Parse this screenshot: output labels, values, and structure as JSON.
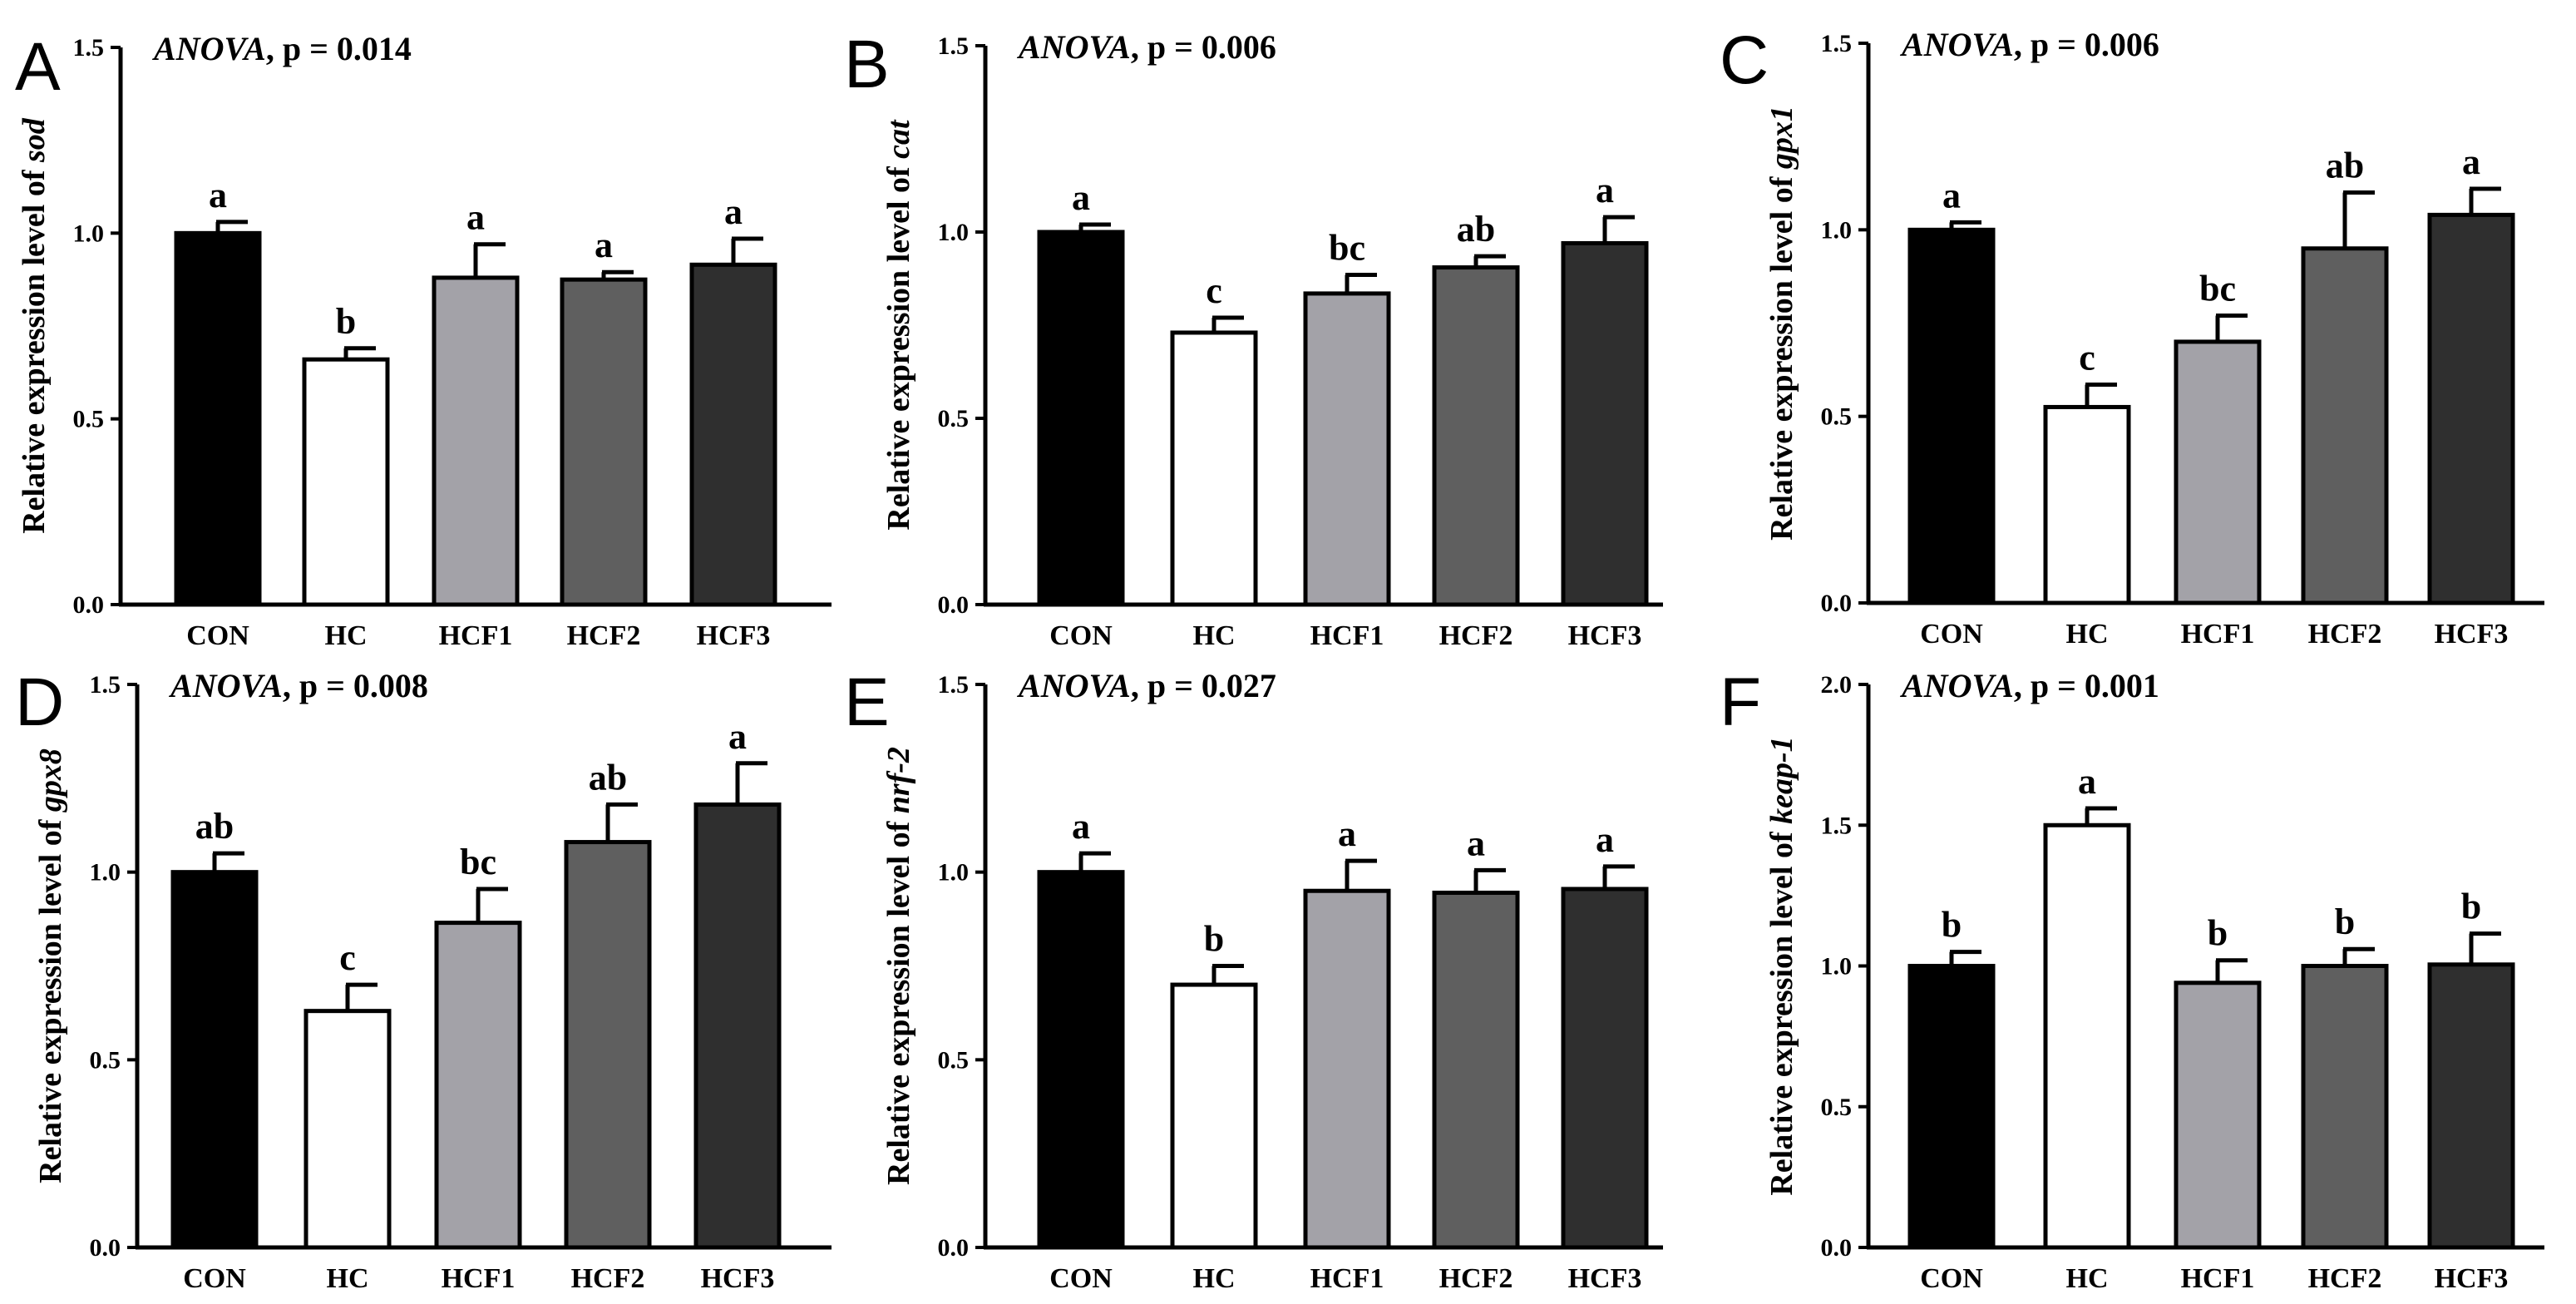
{
  "colors": {
    "CON": "#000000",
    "HC": "#ffffff",
    "HCF1": "#a3a2a8",
    "HCF2": "#5f5f5f",
    "HCF3": "#2f2f2f",
    "stroke": "#000000"
  },
  "chart_data": [
    {
      "panel": "A",
      "type": "bar",
      "categories": [
        "CON",
        "HC",
        "HCF1",
        "HCF2",
        "HCF3"
      ],
      "values": [
        1.0,
        0.66,
        0.88,
        0.875,
        0.915
      ],
      "errors": [
        0.03,
        0.03,
        0.09,
        0.02,
        0.07
      ],
      "significance": [
        "a",
        "b",
        "a",
        "a",
        "a"
      ],
      "annotation_italic": "ANOVA",
      "annotation_rest": ", p = 0.014",
      "ylabel_prefix": "Relative expression level of ",
      "ylabel_gene": "sod",
      "ylim": [
        0,
        1.5
      ],
      "yticks": [
        "0.0",
        "0.5",
        "1.0",
        "1.5"
      ]
    },
    {
      "panel": "B",
      "type": "bar",
      "categories": [
        "CON",
        "HC",
        "HCF1",
        "HCF2",
        "HCF3"
      ],
      "values": [
        1.0,
        0.73,
        0.835,
        0.905,
        0.97
      ],
      "errors": [
        0.02,
        0.04,
        0.05,
        0.03,
        0.07
      ],
      "significance": [
        "a",
        "c",
        "bc",
        "ab",
        "a"
      ],
      "annotation_italic": "ANOVA",
      "annotation_rest": ", p = 0.006",
      "ylabel_prefix": "Relative expression level of ",
      "ylabel_gene": "cat",
      "ylim": [
        0,
        1.5
      ],
      "yticks": [
        "0.0",
        "0.5",
        "1.0",
        "1.5"
      ]
    },
    {
      "panel": "C",
      "type": "bar",
      "categories": [
        "CON",
        "HC",
        "HCF1",
        "HCF2",
        "HCF3"
      ],
      "values": [
        1.0,
        0.525,
        0.7,
        0.95,
        1.04
      ],
      "errors": [
        0.02,
        0.06,
        0.07,
        0.15,
        0.07
      ],
      "significance": [
        "a",
        "c",
        "bc",
        "ab",
        "a"
      ],
      "annotation_italic": "ANOVA",
      "annotation_rest": ", p = 0.006",
      "ylabel_prefix": "Relative expression level of ",
      "ylabel_gene": "gpx1",
      "ylim": [
        0,
        1.5
      ],
      "yticks": [
        "0.0",
        "0.5",
        "1.0",
        "1.5"
      ]
    },
    {
      "panel": "D",
      "type": "bar",
      "categories": [
        "CON",
        "HC",
        "HCF1",
        "HCF2",
        "HCF3"
      ],
      "values": [
        1.0,
        0.63,
        0.865,
        1.08,
        1.18
      ],
      "errors": [
        0.05,
        0.07,
        0.09,
        0.1,
        0.11
      ],
      "significance": [
        "ab",
        "c",
        "bc",
        "ab",
        "a"
      ],
      "annotation_italic": "ANOVA",
      "annotation_rest": ", p = 0.008",
      "ylabel_prefix": "Relative expression level of ",
      "ylabel_gene": "gpx8",
      "ylim": [
        0,
        1.5
      ],
      "yticks": [
        "0.0",
        "0.5",
        "1.0",
        "1.5"
      ]
    },
    {
      "panel": "E",
      "type": "bar",
      "categories": [
        "CON",
        "HC",
        "HCF1",
        "HCF2",
        "HCF3"
      ],
      "values": [
        1.0,
        0.7,
        0.95,
        0.945,
        0.955
      ],
      "errors": [
        0.05,
        0.05,
        0.08,
        0.06,
        0.06
      ],
      "significance": [
        "a",
        "b",
        "a",
        "a",
        "a"
      ],
      "annotation_italic": "ANOVA",
      "annotation_rest": ", p = 0.027",
      "ylabel_prefix": "Relative expression level of ",
      "ylabel_gene": "nrf-2",
      "ylim": [
        0,
        1.5
      ],
      "yticks": [
        "0.0",
        "0.5",
        "1.0",
        "1.5"
      ]
    },
    {
      "panel": "F",
      "type": "bar",
      "categories": [
        "CON",
        "HC",
        "HCF1",
        "HCF2",
        "HCF3"
      ],
      "values": [
        1.0,
        1.5,
        0.94,
        1.0,
        1.005
      ],
      "errors": [
        0.05,
        0.06,
        0.08,
        0.06,
        0.11
      ],
      "significance": [
        "b",
        "a",
        "b",
        "b",
        "b"
      ],
      "annotation_italic": "ANOVA",
      "annotation_rest": ", p = 0.001",
      "ylabel_prefix": "Relative expression level of ",
      "ylabel_gene": "keap-1",
      "ylim": [
        0,
        2.0
      ],
      "yticks": [
        "0.0",
        "0.5",
        "1.0",
        "1.5",
        "2.0"
      ]
    }
  ]
}
